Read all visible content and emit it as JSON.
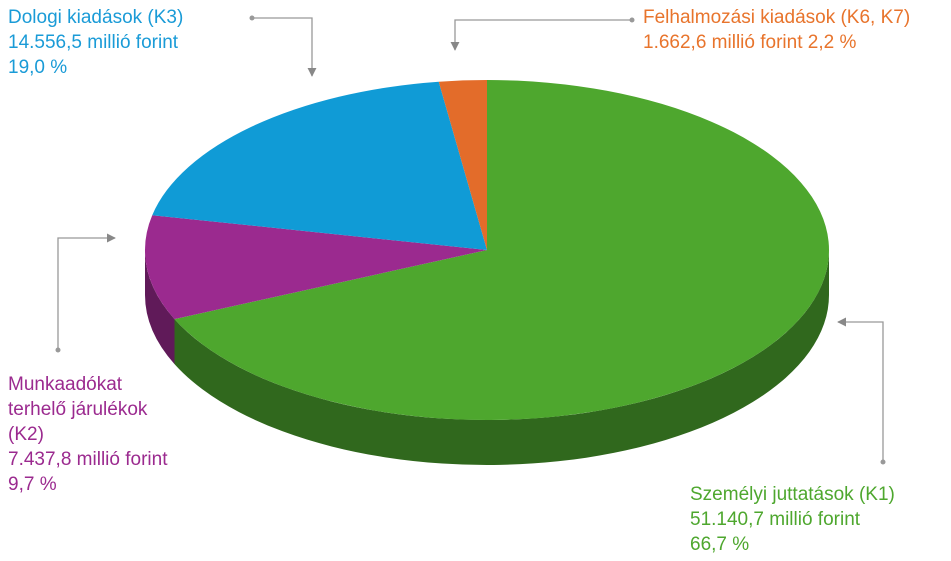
{
  "chart_data": {
    "type": "pie",
    "categories": [
      "Személyi juttatások (K1)",
      "Munkaadókat terhelő járulékok (K2)",
      "Dologi kiadások (K3)",
      "Felhalmozási kiadások (K6, K7)"
    ],
    "values": [
      66.7,
      9.7,
      19.0,
      2.2
    ],
    "value_labels": [
      "66,7 %",
      "9,7 %",
      "19,0 %",
      "2,2 %"
    ],
    "amount_labels": [
      "51.140,7 millió forint",
      "7.437,8 millió forint",
      "14.556,5 millió forint",
      "1.662,6 millió forint"
    ],
    "colors": [
      "#4ea72e",
      "#9b2a8f",
      "#109bd6",
      "#e36c2a"
    ]
  }
}
